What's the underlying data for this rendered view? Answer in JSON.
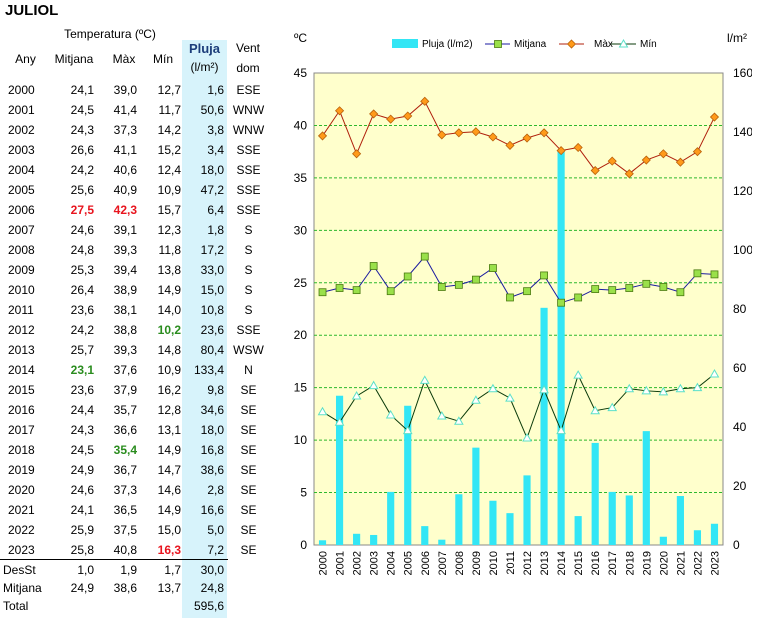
{
  "title": "JULIOL",
  "table": {
    "header_temp": "Temperatura (ºC)",
    "col_any": "Any",
    "col_mitjana": "Mitjana",
    "col_max": "Màx",
    "col_min": "Mín",
    "col_pluja": "Pluja",
    "col_pluja_unit": "(l/m²)",
    "col_vent": "Vent",
    "col_vent2": "dom",
    "rows": [
      {
        "year": "2000",
        "mit": "24,1",
        "max": "39,0",
        "min": "12,7",
        "pluja": "1,6",
        "vent": "ESE"
      },
      {
        "year": "2001",
        "mit": "24,5",
        "max": "41,4",
        "min": "11,7",
        "pluja": "50,6",
        "vent": "WNW"
      },
      {
        "year": "2002",
        "mit": "24,3",
        "max": "37,3",
        "min": "14,2",
        "pluja": "3,8",
        "vent": "WNW"
      },
      {
        "year": "2003",
        "mit": "26,6",
        "max": "41,1",
        "min": "15,2",
        "pluja": "3,4",
        "vent": "SSE"
      },
      {
        "year": "2004",
        "mit": "24,2",
        "max": "40,6",
        "min": "12,4",
        "pluja": "18,0",
        "vent": "SSE"
      },
      {
        "year": "2005",
        "mit": "25,6",
        "max": "40,9",
        "min": "10,9",
        "pluja": "47,2",
        "vent": "SSE"
      },
      {
        "year": "2006",
        "mit": "27,5",
        "max": "42,3",
        "min": "15,7",
        "pluja": "6,4",
        "vent": "SSE",
        "mit_hl": "red",
        "max_hl": "red"
      },
      {
        "year": "2007",
        "mit": "24,6",
        "max": "39,1",
        "min": "12,3",
        "pluja": "1,8",
        "vent": "S"
      },
      {
        "year": "2008",
        "mit": "24,8",
        "max": "39,3",
        "min": "11,8",
        "pluja": "17,2",
        "vent": "S"
      },
      {
        "year": "2009",
        "mit": "25,3",
        "max": "39,4",
        "min": "13,8",
        "pluja": "33,0",
        "vent": "S"
      },
      {
        "year": "2010",
        "mit": "26,4",
        "max": "38,9",
        "min": "14,9",
        "pluja": "15,0",
        "vent": "S"
      },
      {
        "year": "2011",
        "mit": "23,6",
        "max": "38,1",
        "min": "14,0",
        "pluja": "10,8",
        "vent": "S"
      },
      {
        "year": "2012",
        "mit": "24,2",
        "max": "38,8",
        "min": "10,2",
        "pluja": "23,6",
        "vent": "SSE",
        "min_hl": "green"
      },
      {
        "year": "2013",
        "mit": "25,7",
        "max": "39,3",
        "min": "14,8",
        "pluja": "80,4",
        "vent": "WSW"
      },
      {
        "year": "2014",
        "mit": "23,1",
        "max": "37,6",
        "min": "10,9",
        "pluja": "133,4",
        "vent": "N",
        "mit_hl": "green"
      },
      {
        "year": "2015",
        "mit": "23,6",
        "max": "37,9",
        "min": "16,2",
        "pluja": "9,8",
        "vent": "SE"
      },
      {
        "year": "2016",
        "mit": "24,4",
        "max": "35,7",
        "min": "12,8",
        "pluja": "34,6",
        "vent": "SE"
      },
      {
        "year": "2017",
        "mit": "24,3",
        "max": "36,6",
        "min": "13,1",
        "pluja": "18,0",
        "vent": "SE"
      },
      {
        "year": "2018",
        "mit": "24,5",
        "max": "35,4",
        "min": "14,9",
        "pluja": "16,8",
        "vent": "SE",
        "max_hl": "green"
      },
      {
        "year": "2019",
        "mit": "24,9",
        "max": "36,7",
        "min": "14,7",
        "pluja": "38,6",
        "vent": "SE"
      },
      {
        "year": "2020",
        "mit": "24,6",
        "max": "37,3",
        "min": "14,6",
        "pluja": "2,8",
        "vent": "SE"
      },
      {
        "year": "2021",
        "mit": "24,1",
        "max": "36,5",
        "min": "14,9",
        "pluja": "16,6",
        "vent": "SE"
      },
      {
        "year": "2022",
        "mit": "25,9",
        "max": "37,5",
        "min": "15,0",
        "pluja": "5,0",
        "vent": "SE"
      },
      {
        "year": "2023",
        "mit": "25,8",
        "max": "40,8",
        "min": "16,3",
        "pluja": "7,2",
        "vent": "SE",
        "min_hl": "red"
      }
    ],
    "stats": [
      {
        "label": "DesSt",
        "mit": "1,0",
        "max": "1,9",
        "min": "1,7",
        "pluja": "30,0"
      },
      {
        "label": "Mitjana",
        "mit": "24,9",
        "max": "38,6",
        "min": "13,7",
        "pluja": "24,8"
      },
      {
        "label": "Total",
        "mit": "",
        "max": "",
        "min": "",
        "pluja": "595,6"
      }
    ]
  },
  "colors": {
    "highlight_red": "#e8141e",
    "highlight_green": "#2a8c1e",
    "pluja_bg": "#d7f3fb",
    "plot_bg": "#ffffcc",
    "bar": "#33e6f5",
    "mitjana": "#1a1aa0",
    "mitjana_marker": "#9ae04a",
    "max": "#b0200c",
    "max_marker": "#ff9a1a",
    "min": "#0a3a0a",
    "min_marker": "#5ce0c8",
    "grid": "#2db82d"
  },
  "chart_data": {
    "type": "bar+line",
    "y_left_label": "ºC",
    "y_right_label": "l/m²",
    "ylim_left": [
      0,
      45
    ],
    "ylim_right": [
      0,
      160
    ],
    "y_left_ticks": [
      "0",
      "5",
      "10",
      "15",
      "20",
      "25",
      "30",
      "35",
      "40",
      "45"
    ],
    "y_right_ticks": [
      "0",
      "20",
      "40",
      "60",
      "80",
      "100",
      "120",
      "140",
      "160"
    ],
    "grid": "horizontal, dashed",
    "legend_position": "top",
    "categories": [
      "2000",
      "2001",
      "2002",
      "2003",
      "2004",
      "2005",
      "2006",
      "2007",
      "2008",
      "2009",
      "2010",
      "2011",
      "2012",
      "2013",
      "2014",
      "2015",
      "2016",
      "2017",
      "2018",
      "2019",
      "2020",
      "2021",
      "2022",
      "2023"
    ],
    "series": [
      {
        "name": "Pluja (l/m2)",
        "kind": "bar",
        "axis": "right",
        "values": [
          1.6,
          50.6,
          3.8,
          3.4,
          18.0,
          47.2,
          6.4,
          1.8,
          17.2,
          33.0,
          15.0,
          10.8,
          23.6,
          80.4,
          133.4,
          9.8,
          34.6,
          18.0,
          16.8,
          38.6,
          2.8,
          16.6,
          5.0,
          7.2
        ]
      },
      {
        "name": "Mitjana",
        "kind": "line",
        "axis": "left",
        "values": [
          24.1,
          24.5,
          24.3,
          26.6,
          24.2,
          25.6,
          27.5,
          24.6,
          24.8,
          25.3,
          26.4,
          23.6,
          24.2,
          25.7,
          23.1,
          23.6,
          24.4,
          24.3,
          24.5,
          24.9,
          24.6,
          24.1,
          25.9,
          25.8
        ]
      },
      {
        "name": "Màx",
        "kind": "line",
        "axis": "left",
        "values": [
          39.0,
          41.4,
          37.3,
          41.1,
          40.6,
          40.9,
          42.3,
          39.1,
          39.3,
          39.4,
          38.9,
          38.1,
          38.8,
          39.3,
          37.6,
          37.9,
          35.7,
          36.6,
          35.4,
          36.7,
          37.3,
          36.5,
          37.5,
          40.8
        ]
      },
      {
        "name": "Mín",
        "kind": "line",
        "axis": "left",
        "values": [
          12.7,
          11.7,
          14.2,
          15.2,
          12.4,
          10.9,
          15.7,
          12.3,
          11.8,
          13.8,
          14.9,
          14.0,
          10.2,
          14.8,
          10.9,
          16.2,
          12.8,
          13.1,
          14.9,
          14.7,
          14.6,
          14.9,
          15.0,
          16.3
        ]
      }
    ]
  }
}
